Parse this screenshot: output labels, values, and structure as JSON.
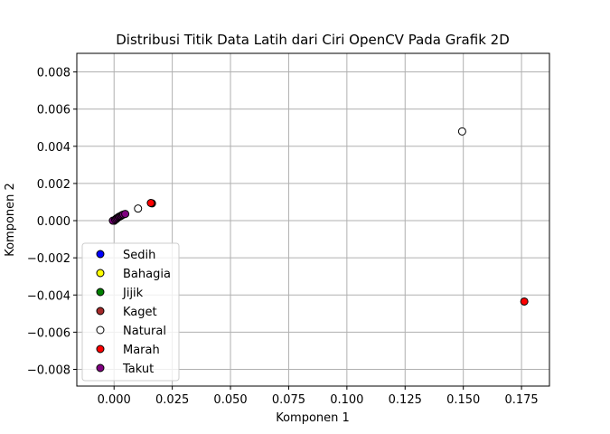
{
  "chart_data": {
    "type": "scatter",
    "title": "Distribusi Titik Data Latih dari Ciri OpenCV Pada Grafik 2D",
    "xlabel": "Komponen 1",
    "ylabel": "Komponen 2",
    "xlim": [
      -0.016,
      0.187
    ],
    "ylim": [
      -0.0089,
      0.009
    ],
    "xticks": [
      0.0,
      0.025,
      0.05,
      0.075,
      0.1,
      0.125,
      0.15,
      0.175
    ],
    "xtick_labels": [
      "0.000",
      "0.025",
      "0.050",
      "0.075",
      "0.100",
      "0.125",
      "0.150",
      "0.175"
    ],
    "yticks": [
      -0.008,
      -0.006,
      -0.004,
      -0.002,
      0.0,
      0.002,
      0.004,
      0.006,
      0.008
    ],
    "ytick_labels": [
      "−0.008",
      "−0.006",
      "−0.004",
      "−0.002",
      "0.000",
      "0.002",
      "0.004",
      "0.006",
      "0.008"
    ],
    "grid": true,
    "legend_position": "lower-left",
    "series": [
      {
        "name": "Sedih",
        "color": "#0000ff",
        "points": [
          [
            0.0,
            0.0
          ],
          [
            0.0005,
            5e-05
          ],
          [
            0.001,
            0.0001
          ]
        ]
      },
      {
        "name": "Bahagia",
        "color": "#ffff00",
        "points": [
          [
            0.0,
            0.0
          ],
          [
            0.0008,
            8e-05
          ]
        ]
      },
      {
        "name": "Jijik",
        "color": "#008000",
        "points": [
          [
            0.0002,
            2e-05
          ],
          [
            0.0012,
            0.00012
          ]
        ]
      },
      {
        "name": "Kaget",
        "color": "#a52a2a",
        "points": [
          [
            0.0163,
            0.00093
          ],
          [
            0.0001,
            1e-05
          ]
        ]
      },
      {
        "name": "Natural",
        "color": "#ffffff",
        "points": [
          [
            0.1495,
            0.0048
          ],
          [
            0.0103,
            0.00065
          ],
          [
            0.0,
            0.0
          ]
        ]
      },
      {
        "name": "Marah",
        "color": "#ff0000",
        "points": [
          [
            0.1762,
            -0.00435
          ],
          [
            0.0158,
            0.00095
          ],
          [
            0.0003,
            3e-05
          ]
        ]
      },
      {
        "name": "Takut",
        "color": "#800080",
        "points": [
          [
            -0.0005,
            0.0
          ],
          [
            0.0005,
            5e-05
          ],
          [
            0.001,
            0.0001
          ],
          [
            0.0015,
            0.00015
          ],
          [
            0.002,
            0.0002
          ],
          [
            0.0025,
            0.00023
          ],
          [
            0.003,
            0.00026
          ],
          [
            0.0035,
            0.0003
          ],
          [
            0.004,
            0.00033
          ],
          [
            0.0048,
            0.00036
          ]
        ]
      }
    ]
  }
}
